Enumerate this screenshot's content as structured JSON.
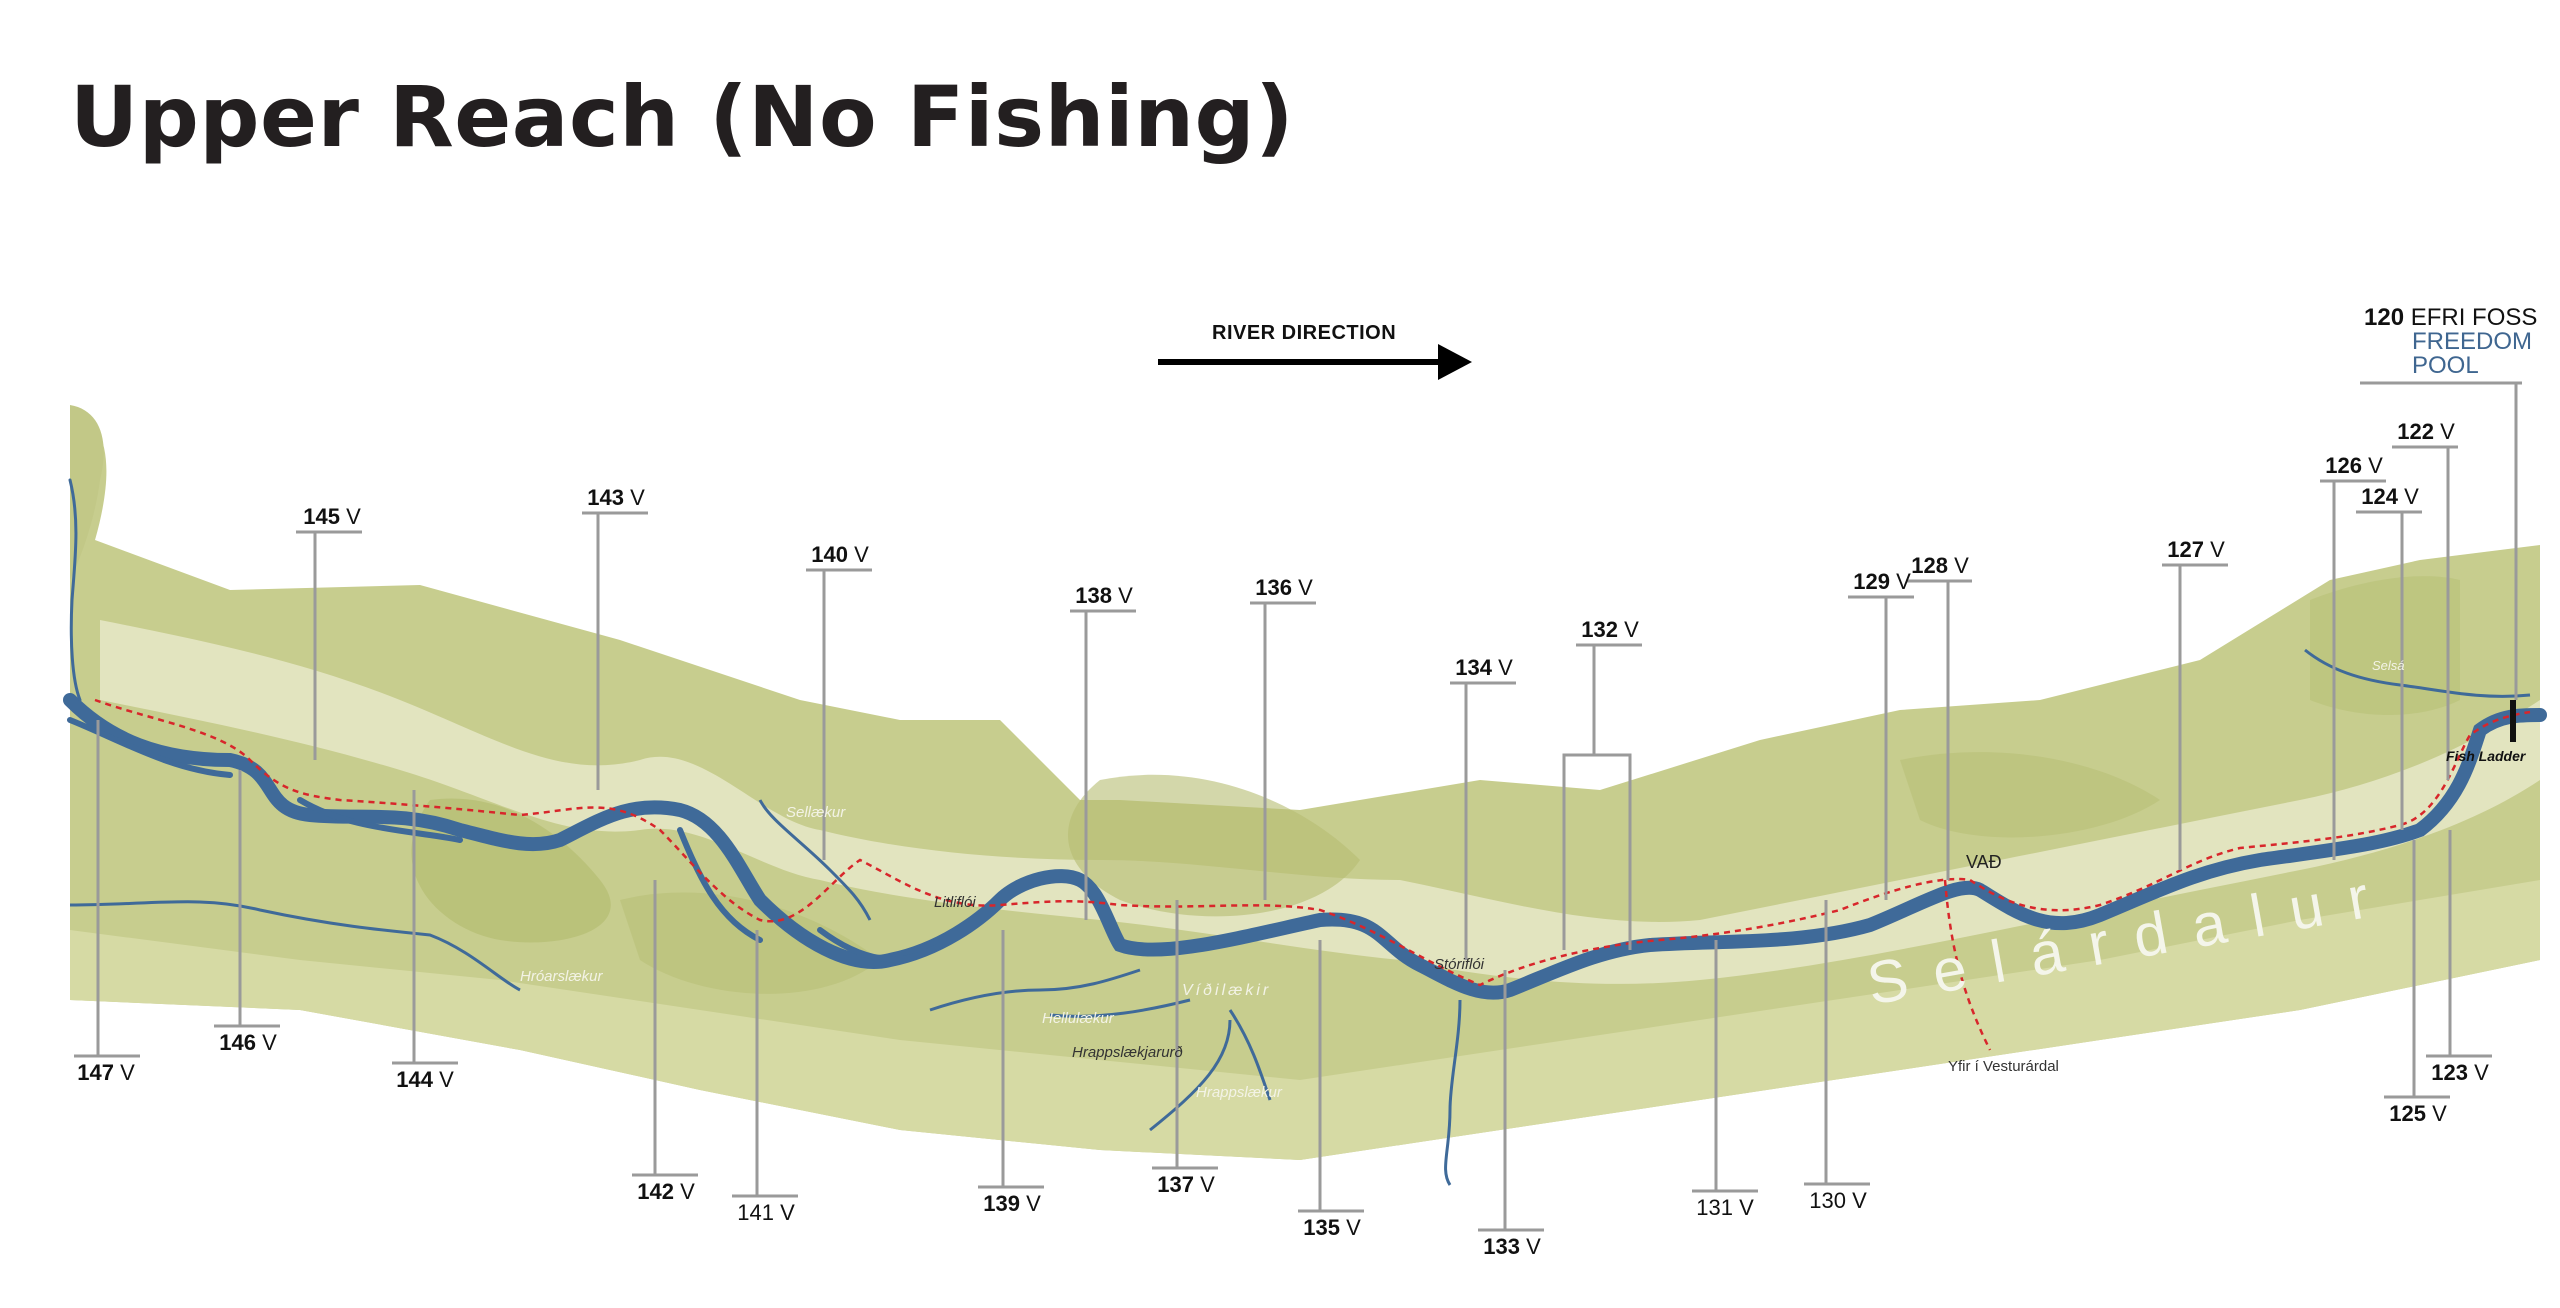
{
  "title": "Upper Reach (No Fishing)",
  "direction_label": "RIVER DIRECTION",
  "efri_foss": {
    "number": "120",
    "line1": "EFRI FOSS",
    "line2": "FREEDOM",
    "line3": "POOL"
  },
  "pools_above": [
    {
      "num": "145",
      "suffix": "V"
    },
    {
      "num": "143",
      "suffix": "V"
    },
    {
      "num": "140",
      "suffix": "V"
    },
    {
      "num": "138",
      "suffix": "V"
    },
    {
      "num": "136",
      "suffix": "V"
    },
    {
      "num": "134",
      "suffix": "V"
    },
    {
      "num": "132",
      "suffix": "V"
    },
    {
      "num": "129",
      "suffix": "V"
    },
    {
      "num": "128",
      "suffix": "V"
    },
    {
      "num": "127",
      "suffix": "V"
    },
    {
      "num": "126",
      "suffix": "V"
    },
    {
      "num": "124",
      "suffix": "V"
    },
    {
      "num": "122",
      "suffix": "V"
    }
  ],
  "pools_below": [
    {
      "num": "147",
      "suffix": "V"
    },
    {
      "num": "146",
      "suffix": "V"
    },
    {
      "num": "144",
      "suffix": "V"
    },
    {
      "num": "142",
      "suffix": "V"
    },
    {
      "num": "141",
      "suffix": "V"
    },
    {
      "num": "139",
      "suffix": "V"
    },
    {
      "num": "137",
      "suffix": "V"
    },
    {
      "num": "135",
      "suffix": "V"
    },
    {
      "num": "133",
      "suffix": "V"
    },
    {
      "num": "131",
      "suffix": "V"
    },
    {
      "num": "130",
      "suffix": "V"
    },
    {
      "num": "125",
      "suffix": "V"
    },
    {
      "num": "123",
      "suffix": "V"
    }
  ],
  "places": {
    "sellaekur": "Sellækur",
    "litlifloi": "Litliflói",
    "hroarslaekur": "Hróarslækur",
    "helluaekur": "Hellulækur",
    "vidilaekir": "Víðilækir",
    "hrappslaekjarurd": "Hrappslækjarurð",
    "hrappslaekur": "Hrappslækur",
    "storifloi": "Stóriflói",
    "yfir": "Yfir í Vesturárdal",
    "selsa": "Selsá",
    "vad": "VAÐ",
    "fish_ladder": "Fish Ladder",
    "valley": "Selárdalur"
  },
  "colors": {
    "river": "#3f6a99",
    "valley_dark": "#b8c07a",
    "valley_mid": "#c7cd8e",
    "valley_light": "#dfe2b6",
    "path": "#d8262b",
    "leader": "#9a9a9a"
  }
}
